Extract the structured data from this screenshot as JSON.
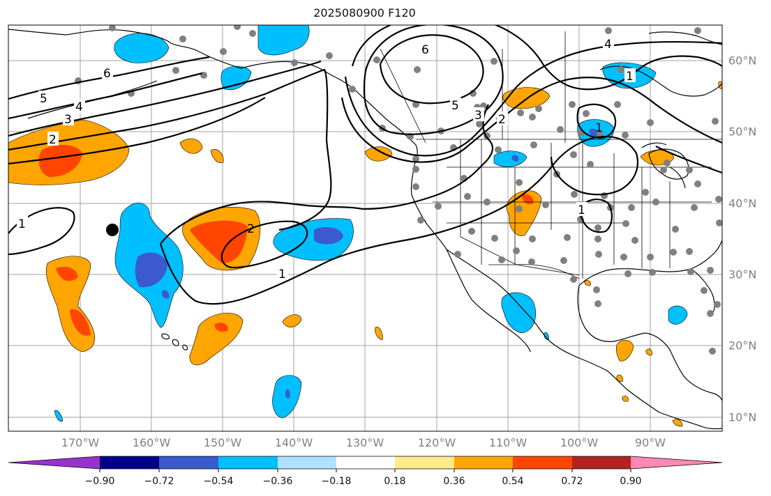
{
  "title": "2025080900 F120",
  "lon_labels": [
    "170°W",
    "160°W",
    "150°W",
    "140°W",
    "130°W",
    "120°W",
    "110°W",
    "100°W",
    "90°W"
  ],
  "lat_labels": [
    "60°N",
    "50°N",
    "40°N",
    "30°N",
    "20°N",
    "10°N"
  ],
  "contour_labels": [
    "6",
    "5",
    "4",
    "3",
    "2",
    "1",
    "6",
    "5",
    "3",
    "2",
    "4",
    "1",
    "1",
    "2",
    "1",
    "1"
  ],
  "colorbar": {
    "ticks": [
      "−0.90",
      "−0.72",
      "−0.54",
      "−0.36",
      "−0.18",
      "0.18",
      "0.36",
      "0.54",
      "0.72",
      "0.90"
    ],
    "colors": [
      "#9932cc",
      "#00008b",
      "#3a5acd",
      "#00bfff",
      "#b0e2ff",
      "#ffffff",
      "#ffeb8a",
      "#ffa500",
      "#ff4500",
      "#b22222",
      "#ff88b4"
    ]
  }
}
